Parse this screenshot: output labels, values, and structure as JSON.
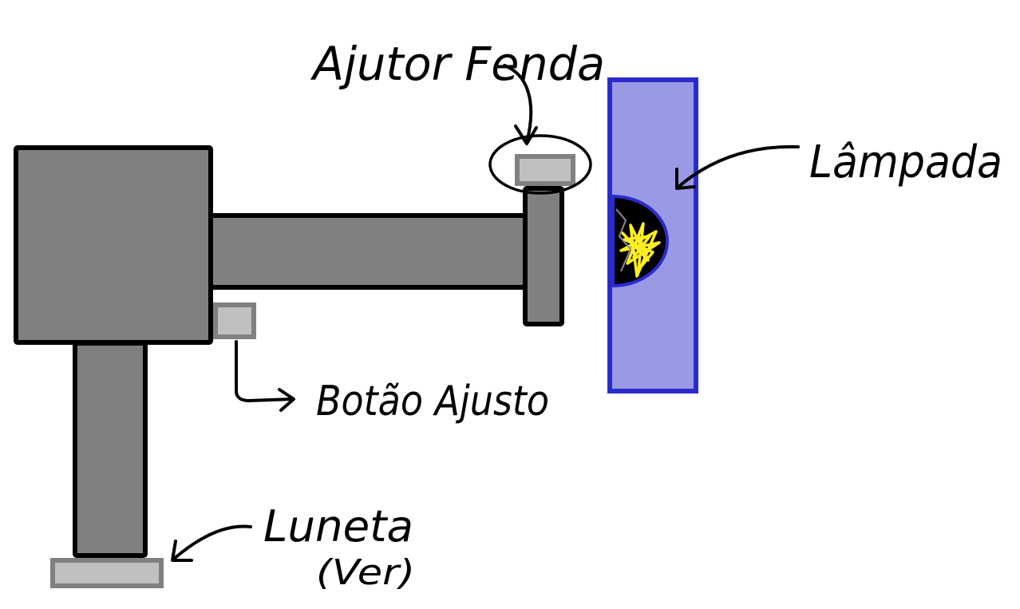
{
  "labels": {
    "ajustor_fenda": "Ajutor Fenda",
    "lampada": "Lâmpada",
    "botao_ajuste": "Botão Ajusto",
    "luneta_line1": "Luneta",
    "luneta_line2": "(Ver)"
  },
  "colors": {
    "body": "#808080",
    "button": "#c0c0c0",
    "button_border": "#808080",
    "outline": "#000000",
    "lamp_panel": "#9999e6",
    "lamp_border": "#2b2bcc",
    "bulb_dark": "#000000",
    "bulb_light": "#ffee22"
  }
}
